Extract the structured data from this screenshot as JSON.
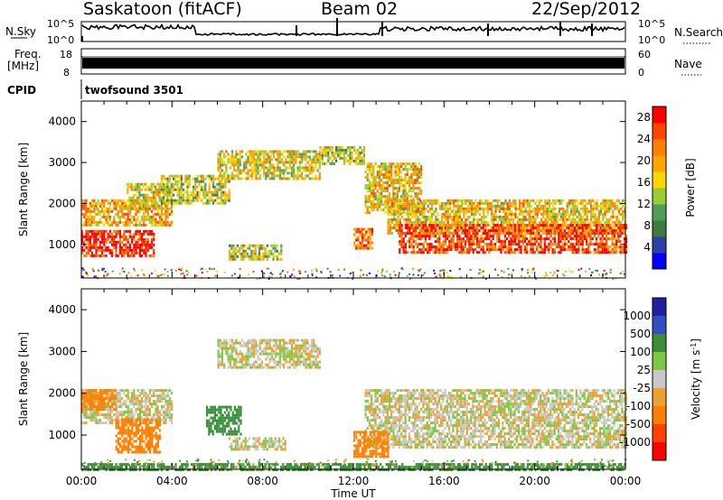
{
  "header": {
    "station": "Saskatoon (fitACF)",
    "beam": "Beam 02",
    "date": "22/Sep/2012"
  },
  "summary_panels": {
    "nsky_label": "N.Sky",
    "nsky_ticks": [
      "10^5",
      "10^0"
    ],
    "nsearch_label": "N.Search",
    "nsearch_ticks": [
      "10^5",
      "10^0"
    ],
    "freq_label": "Freq.",
    "freq_unit": "[MHz]",
    "freq_ticks": [
      "18",
      "8"
    ],
    "nave_label": "Nave",
    "nave_ticks": [
      "60",
      "0"
    ],
    "cpid_label": "CPID",
    "cpid_value": "twofsound 3501"
  },
  "colors": {
    "power_scale": [
      "#0000ff",
      "#2c3fa8",
      "#3f7a3f",
      "#4f9e5a",
      "#9acd32",
      "#ffd700",
      "#ffa500",
      "#ff7f00",
      "#ff4500",
      "#ff0000"
    ],
    "velocity_scale": [
      "#2020a0",
      "#3050c0",
      "#3b8f3b",
      "#7cc840",
      "#c8c8c8",
      "#f0a030",
      "#ff8000",
      "#ff4000",
      "#ff0000"
    ]
  },
  "chart_data": [
    {
      "type": "heatmap",
      "panel": "power",
      "xlabel": "",
      "ylabel": "Slant Range [km]",
      "x_ticks": [
        "00:00",
        "04:00",
        "08:00",
        "12:00",
        "16:00",
        "20:00",
        "00:00"
      ],
      "x_hours": [
        0,
        4,
        8,
        12,
        16,
        20,
        24
      ],
      "y_ticks": [
        1000,
        2000,
        3000,
        4000
      ],
      "ylim": [
        180,
        4500
      ],
      "xlim": [
        0,
        24
      ],
      "colorbar_label": "Power [dB]",
      "colorbar_ticks": [
        "28",
        "24",
        "20",
        "16",
        "12",
        "8",
        "4"
      ],
      "colorbar_range": [
        0,
        30
      ],
      "bands": [
        {
          "t0": 0,
          "t1": 3.2,
          "r0": 750,
          "r1": 1350,
          "level": 28
        },
        {
          "t0": 0,
          "t1": 4.0,
          "r0": 1500,
          "r1": 2100,
          "level": 20
        },
        {
          "t0": 2.0,
          "t1": 4.0,
          "r0": 1900,
          "r1": 2500,
          "level": 16
        },
        {
          "t0": 3.5,
          "t1": 6.5,
          "r0": 2000,
          "r1": 2700,
          "level": 14
        },
        {
          "t0": 6.0,
          "t1": 10.5,
          "r0": 2600,
          "r1": 3300,
          "level": 16
        },
        {
          "t0": 10.5,
          "t1": 12.5,
          "r0": 3000,
          "r1": 3400,
          "level": 14
        },
        {
          "t0": 12.5,
          "t1": 15.0,
          "r0": 1800,
          "r1": 3000,
          "level": 18
        },
        {
          "t0": 13.5,
          "t1": 24,
          "r0": 1300,
          "r1": 2100,
          "level": 18
        },
        {
          "t0": 14.0,
          "t1": 24,
          "r0": 800,
          "r1": 1500,
          "level": 26
        },
        {
          "t0": 6.5,
          "t1": 8.8,
          "r0": 650,
          "r1": 1000,
          "level": 14
        },
        {
          "t0": 12.0,
          "t1": 12.8,
          "r0": 900,
          "r1": 1400,
          "level": 24
        }
      ]
    },
    {
      "type": "heatmap",
      "panel": "velocity",
      "xlabel": "Time UT",
      "ylabel": "Slant Range [km]",
      "x_ticks": [
        "00:00",
        "04:00",
        "08:00",
        "12:00",
        "16:00",
        "20:00",
        "00:00"
      ],
      "x_hours": [
        0,
        4,
        8,
        12,
        16,
        20,
        24
      ],
      "y_ticks": [
        1000,
        2000,
        3000,
        4000
      ],
      "ylim": [
        180,
        4500
      ],
      "xlim": [
        0,
        24
      ],
      "colorbar_label": "Velocity [m s-1]",
      "colorbar_ticks": [
        "1000",
        "500",
        "100",
        "25",
        "-25",
        "-100",
        "-500",
        "-1000"
      ],
      "bands": [
        {
          "t0": 0,
          "t1": 4.0,
          "r0": 1300,
          "r1": 2100,
          "v": 0
        },
        {
          "t0": 1.5,
          "t1": 3.5,
          "r0": 600,
          "r1": 1400,
          "v": -300
        },
        {
          "t0": 0,
          "t1": 1.5,
          "r0": 1600,
          "r1": 2100,
          "v": -150
        },
        {
          "t0": 5.5,
          "t1": 7.0,
          "r0": 1000,
          "r1": 1700,
          "v": 250
        },
        {
          "t0": 6.0,
          "t1": 10.5,
          "r0": 2600,
          "r1": 3300,
          "v": 0
        },
        {
          "t0": 12.5,
          "t1": 24,
          "r0": 700,
          "r1": 2100,
          "v": 0
        },
        {
          "t0": 12.0,
          "t1": 13.5,
          "r0": 500,
          "r1": 1100,
          "v": -150
        },
        {
          "t0": 6.5,
          "t1": 9.0,
          "r0": 650,
          "r1": 950,
          "v": 0
        },
        {
          "t0": 0,
          "t1": 24,
          "r0": 180,
          "r1": 330,
          "v": 150
        }
      ]
    }
  ]
}
